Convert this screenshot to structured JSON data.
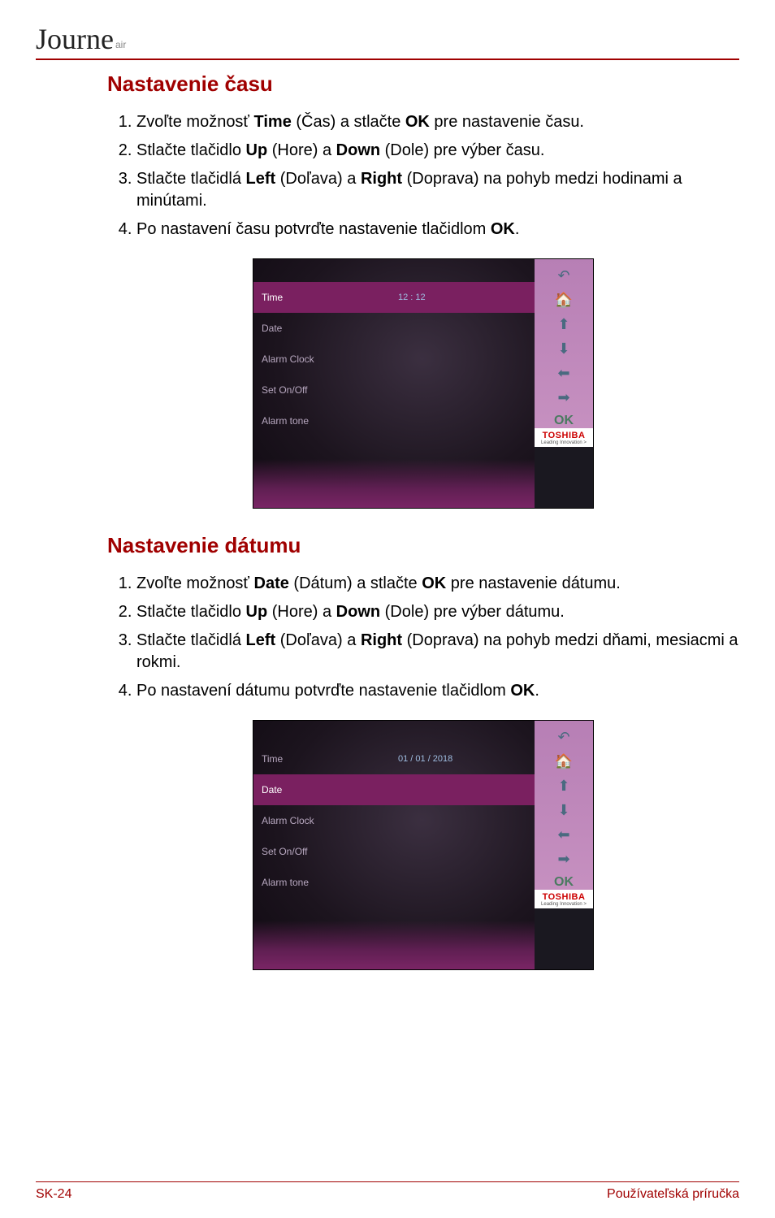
{
  "header": {
    "logo_text": "Journe",
    "logo_sub": "air"
  },
  "section1": {
    "heading": "Nastavenie času",
    "steps": [
      [
        "Zvoľte možnosť ",
        "Time",
        " (Čas) a stlačte ",
        "OK",
        " pre nastavenie času."
      ],
      [
        "Stlačte tlačidlo ",
        "Up",
        " (Hore) a ",
        "Down",
        " (Dole) pre výber času."
      ],
      [
        "Stlačte tlačidlá ",
        "Left",
        " (Doľava) a ",
        "Right",
        " (Doprava) na pohyb medzi hodinami a minútami."
      ],
      [
        "Po nastavení času potvrďte nastavenie tlačidlom ",
        "OK",
        "."
      ]
    ]
  },
  "device1": {
    "selected_index": 0,
    "rows": [
      {
        "label": "Time",
        "value": "12 : 12"
      },
      {
        "label": "Date",
        "value": ""
      },
      {
        "label": "Alarm Clock",
        "value": ""
      },
      {
        "label": "Set On/Off",
        "value": ""
      },
      {
        "label": "Alarm tone",
        "value": ""
      }
    ],
    "bezel_ok": "OK",
    "brand": "TOSHIBA",
    "brand_tag": "Leading Innovation  >"
  },
  "section2": {
    "heading": "Nastavenie dátumu",
    "steps": [
      [
        "Zvoľte možnosť ",
        "Date",
        " (Dátum) a stlačte ",
        "OK",
        " pre nastavenie dátumu."
      ],
      [
        "Stlačte tlačidlo ",
        "Up",
        " (Hore) a ",
        "Down",
        " (Dole) pre výber dátumu."
      ],
      [
        "Stlačte tlačidlá ",
        "Left",
        " (Doľava) a ",
        "Right",
        " (Doprava) na pohyb medzi dňami, mesiacmi a rokmi."
      ],
      [
        "Po nastavení dátumu potvrďte nastavenie tlačidlom ",
        "OK",
        "."
      ]
    ]
  },
  "device2": {
    "selected_index": 1,
    "rows": [
      {
        "label": "Time",
        "value": "01 / 01 / 2018"
      },
      {
        "label": "Date",
        "value": ""
      },
      {
        "label": "Alarm Clock",
        "value": ""
      },
      {
        "label": "Set On/Off",
        "value": ""
      },
      {
        "label": "Alarm tone",
        "value": ""
      }
    ],
    "bezel_ok": "OK",
    "brand": "TOSHIBA",
    "brand_tag": "Leading Innovation  >"
  },
  "footer": {
    "page_ref": "SK-24",
    "doc_title": "Používateľská príručka"
  },
  "colors": {
    "accent_red": "#a00000",
    "purple_sel": "#7a2060",
    "screen_text": "#b8a8c0",
    "value_text": "#9fbde0"
  }
}
